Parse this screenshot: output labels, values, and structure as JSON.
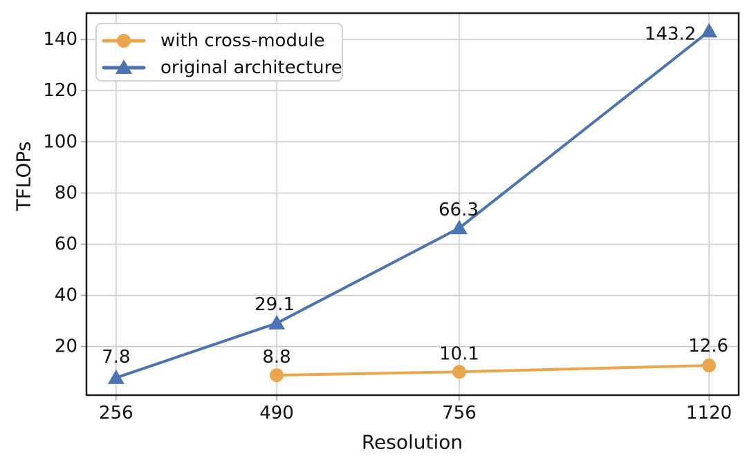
{
  "chart_data": {
    "type": "line",
    "title": "",
    "xlabel": "Resolution",
    "ylabel": "TFLOPs",
    "x_ticks": [
      256,
      490,
      756,
      1120
    ],
    "x_tick_labels": [
      "256",
      "490",
      "756",
      "1120"
    ],
    "y_ticks": [
      20,
      40,
      60,
      80,
      100,
      120,
      140
    ],
    "y_tick_labels": [
      "20",
      "40",
      "60",
      "80",
      "100",
      "120",
      "140"
    ],
    "xlim": [
      212.8,
      1163.2
    ],
    "ylim": [
      1,
      150.3
    ],
    "grid": true,
    "legend_position": "upper-left",
    "series": [
      {
        "name": "with cross-module",
        "color": "#E9A64C",
        "marker": "circle",
        "x": [
          490,
          756,
          1120
        ],
        "values": [
          8.8,
          10.1,
          12.6
        ],
        "labels": [
          "8.8",
          "10.1",
          "12.6"
        ],
        "label_offsets": [
          [
            0,
            -26
          ],
          [
            0,
            -26
          ],
          [
            -1,
            -28
          ]
        ]
      },
      {
        "name": "original architecture",
        "color": "#4C74B2",
        "marker": "triangle",
        "x": [
          256,
          490,
          756,
          1120
        ],
        "values": [
          7.8,
          29.1,
          66.3,
          143.2
        ],
        "labels": [
          "7.8",
          "29.1",
          "66.3",
          "143.2"
        ],
        "label_offsets": [
          [
            0,
            -30
          ],
          [
            -3,
            -27
          ],
          [
            -1,
            -26
          ],
          [
            -56,
            4
          ]
        ]
      }
    ],
    "colors": {
      "background": "#ffffff",
      "grid": "#c9c9c9",
      "spine": "#1a1a1a",
      "tick": "#9a9a9a",
      "text": "#111111",
      "legend_border": "#cccccc",
      "legend_fill": "#ffffff"
    }
  }
}
